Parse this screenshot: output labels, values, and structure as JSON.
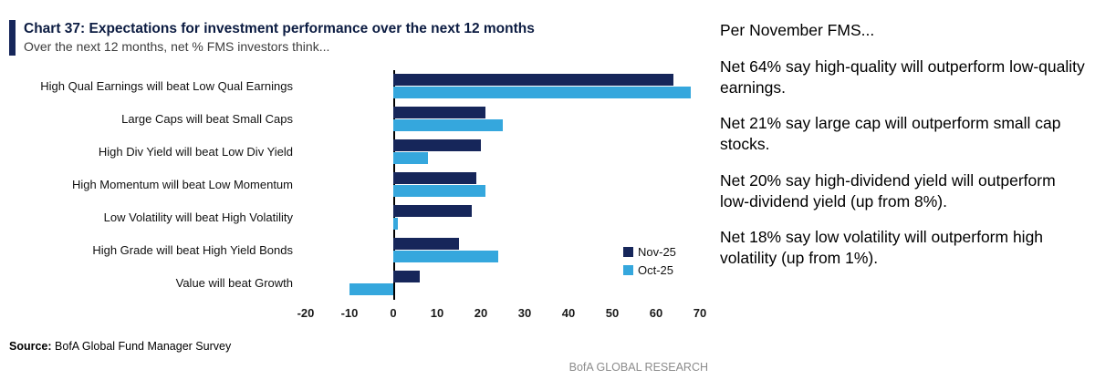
{
  "header": {
    "title": "Chart 37: Expectations for investment performance over the next 12 months",
    "subtitle": "Over the next 12 months, net % FMS investors think..."
  },
  "chart_data": {
    "type": "bar",
    "orientation": "horizontal",
    "title": "Chart 37: Expectations for investment performance over the next 12 months",
    "subtitle": "Over the next 12 months, net % FMS investors think...",
    "categories": [
      "High Qual Earnings will beat Low Qual Earnings",
      "Large Caps will beat Small Caps",
      "High Div Yield will beat Low Div Yield",
      "High Momentum will beat Low Momentum",
      "Low Volatility will beat High Volatility",
      "High Grade will beat High Yield Bonds",
      "Value will beat Growth"
    ],
    "series": [
      {
        "name": "Nov-25",
        "color": "#16265a",
        "values": [
          64,
          21,
          20,
          19,
          18,
          15,
          6
        ]
      },
      {
        "name": "Oct-25",
        "color": "#35a7dd",
        "values": [
          68,
          25,
          8,
          21,
          1,
          24,
          -10
        ]
      }
    ],
    "xlim": [
      -20,
      70
    ],
    "xticks": [
      -20,
      -10,
      0,
      10,
      20,
      30,
      40,
      50,
      60,
      70
    ],
    "xlabel": "",
    "ylabel": "",
    "grid": false,
    "legend_position": "inside-right"
  },
  "source": {
    "label": "Source:",
    "text": "BofA Global Fund Manager Survey"
  },
  "footer": {
    "brand": "BofA GLOBAL RESEARCH"
  },
  "commentary": {
    "paragraphs": [
      "Per November FMS...",
      "Net 64% say high-quality will outperform low-quality earnings.",
      "Net 21% say large cap will outperform small cap stocks.",
      "Net 20% say high-dividend yield will outperform low-dividend yield (up from 8%).",
      "Net 18% say low volatility will outperform high volatility (up from 1%)."
    ]
  }
}
